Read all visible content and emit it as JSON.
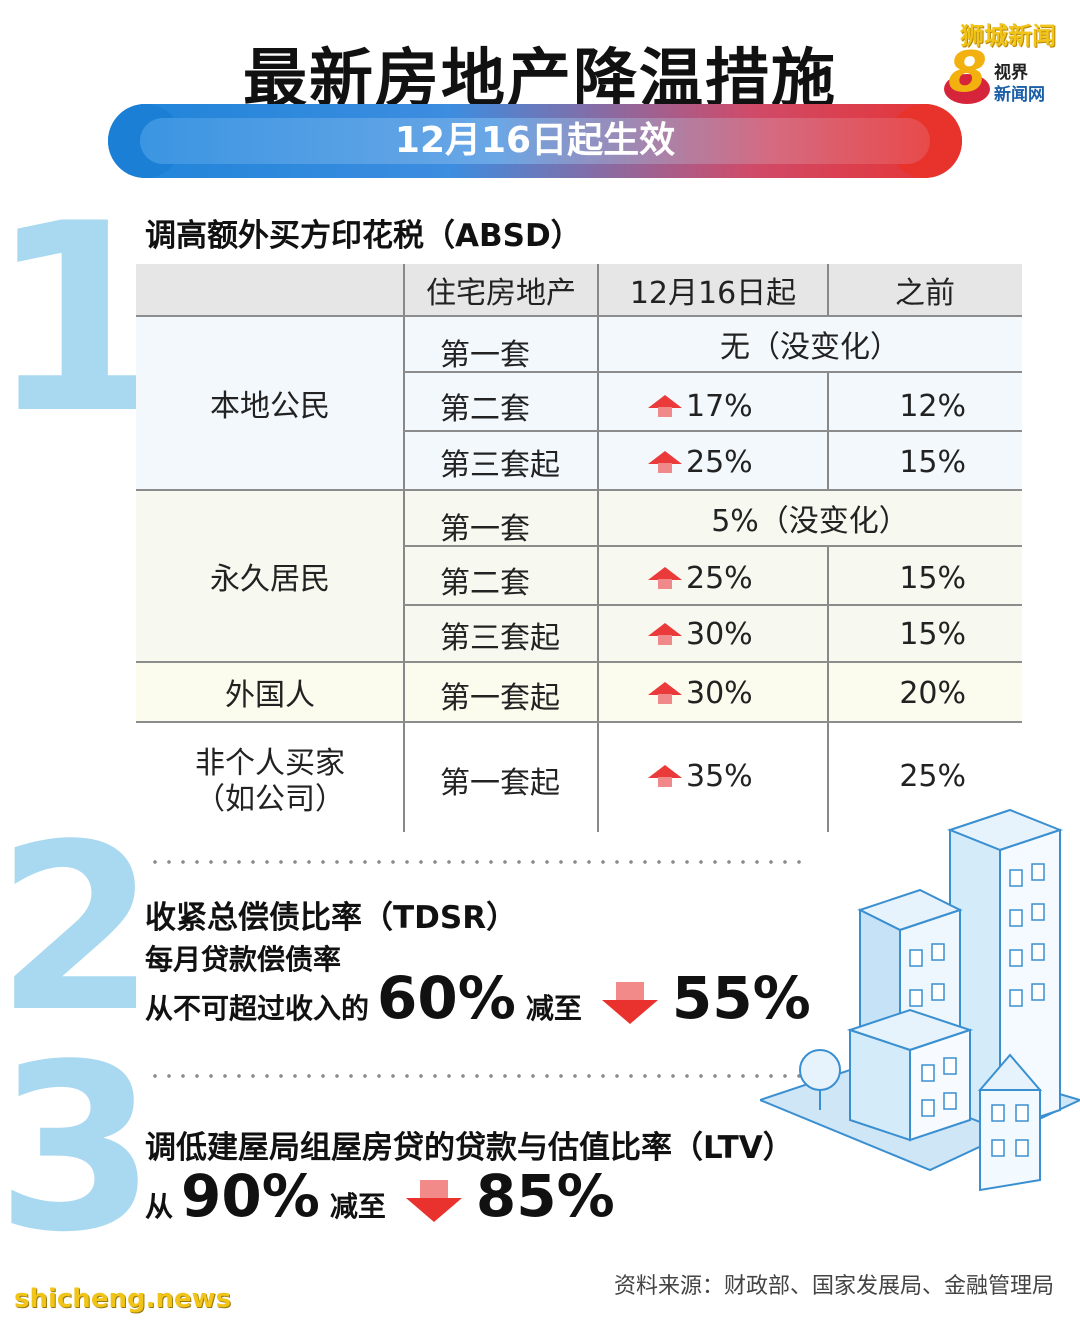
{
  "header": {
    "title": "最新房地产降温措施",
    "date_banner": "12月16日起生效",
    "logo": {
      "line1": "狮城新闻",
      "digit": "8",
      "line2": "视界",
      "line3": "新闻网"
    }
  },
  "section1": {
    "number": "1",
    "title": "调高额外买方印花税（ABSD）",
    "table": {
      "headers": [
        "",
        "住宅房地产",
        "12月16日起",
        "之前"
      ],
      "groups": [
        {
          "name": "本地公民",
          "rows": [
            {
              "property": "第一套",
              "merged": "无（没变化）"
            },
            {
              "property": "第二套",
              "new": "17%",
              "old": "12%"
            },
            {
              "property": "第三套起",
              "new": "25%",
              "old": "15%"
            }
          ]
        },
        {
          "name": "永久居民",
          "rows": [
            {
              "property": "第一套",
              "merged": "5%（没变化）"
            },
            {
              "property": "第二套",
              "new": "25%",
              "old": "15%"
            },
            {
              "property": "第三套起",
              "new": "30%",
              "old": "15%"
            }
          ]
        },
        {
          "name": "外国人",
          "rows": [
            {
              "property": "第一套起",
              "new": "30%",
              "old": "20%"
            }
          ]
        },
        {
          "name_line1": "非个人买家",
          "name_line2": "（如公司）",
          "rows": [
            {
              "property": "第一套起",
              "new": "35%",
              "old": "25%"
            }
          ]
        }
      ]
    }
  },
  "section2": {
    "number": "2",
    "title": "收紧总偿债比率（TDSR）",
    "subtitle": "每月贷款偿债率",
    "prefix": "从不可超过收入的",
    "from": "60%",
    "reduce": "减至",
    "to": "55%"
  },
  "section3": {
    "number": "3",
    "title": "调低建屋局组屋房贷的贷款与估值比率（LTV）",
    "prefix": "从",
    "from": "90%",
    "reduce": "减至",
    "to": "85%"
  },
  "footer": {
    "source": "资料来源：财政部、国家发展局、金融管理局",
    "watermark": "shicheng.news"
  },
  "colors": {
    "accent_blue": "#1e84d8",
    "accent_red": "#e8322f",
    "number_blue": "#a9d8f1",
    "arrow_red": "#ea3a3a"
  }
}
